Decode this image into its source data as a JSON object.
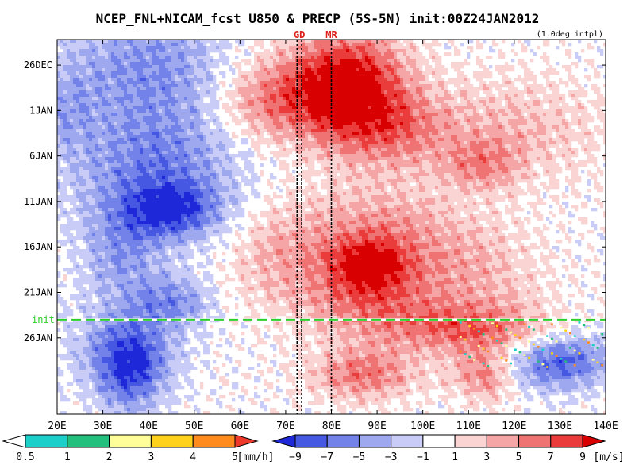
{
  "chart_data": {
    "type": "heatmap",
    "title": "NCEP_FNL+NICAM_fcst U850 & PRECP (5S-5N) init:00Z24JAN2012",
    "subtitle": "(1.0deg intpl)",
    "xlabel": "",
    "ylabel": "",
    "x_ticks": [
      "20E",
      "30E",
      "40E",
      "50E",
      "60E",
      "70E",
      "80E",
      "90E",
      "100E",
      "110E",
      "120E",
      "130E",
      "140E"
    ],
    "xlim": [
      20,
      140
    ],
    "y_ticks": [
      "26DEC",
      "1JAN",
      "6JAN",
      "11JAN",
      "16JAN",
      "21JAN",
      "26JAN"
    ],
    "init_label": "init",
    "marker_lines": [
      {
        "label": "GD",
        "lon_left": 72.5,
        "lon_right": 73.5
      },
      {
        "label": "MR",
        "lon_left": 80,
        "lon_right": 80
      }
    ],
    "precip_colorbar": {
      "labels": [
        "0.5",
        "1",
        "2",
        "3",
        "4",
        "5"
      ],
      "unit": "[mm/h]",
      "colors": [
        "#ffffff",
        "#1ccfc8",
        "#22c07c",
        "#fffe99",
        "#ffd11b",
        "#ff8a1e",
        "#ef3a2b"
      ]
    },
    "u850_colorbar": {
      "labels": [
        "−9",
        "−7",
        "−5",
        "−3",
        "−1",
        "1",
        "3",
        "5",
        "7",
        "9"
      ],
      "unit": "[m/s]",
      "colors": [
        "#1f28d8",
        "#4657e2",
        "#7382e8",
        "#9ea8ef",
        "#c8ccf6",
        "#ffffff",
        "#fad3d3",
        "#f5a5a5",
        "#f07373",
        "#eb3c3c",
        "#d80000"
      ]
    },
    "u850_field": {
      "description_units": "m/s",
      "centers": [
        {
          "lon": 83,
          "day": 3,
          "value": 11,
          "sx": 9,
          "sy": 4
        },
        {
          "lon": 66,
          "day": 5,
          "value": 5,
          "sx": 8,
          "sy": 3
        },
        {
          "lon": 92,
          "day": 8,
          "value": 5,
          "sx": 10,
          "sy": 3
        },
        {
          "lon": 120,
          "day": 8,
          "value": 3,
          "sx": 14,
          "sy": 4
        },
        {
          "lon": 113,
          "day": 12,
          "value": 4,
          "sx": 6,
          "sy": 2
        },
        {
          "lon": 90,
          "day": 20,
          "value": 5,
          "sx": 12,
          "sy": 4
        },
        {
          "lon": 88,
          "day": 23,
          "value": 6,
          "sx": 6,
          "sy": 2
        },
        {
          "lon": 68,
          "day": 22,
          "value": 3,
          "sx": 8,
          "sy": 4
        },
        {
          "lon": 112,
          "day": 24,
          "value": 3,
          "sx": 10,
          "sy": 4
        },
        {
          "lon": 88,
          "day": 27,
          "value": 5,
          "sx": 10,
          "sy": 3
        },
        {
          "lon": 110,
          "day": 30,
          "value": 6,
          "sx": 12,
          "sy": 2
        },
        {
          "lon": 87,
          "day": 35,
          "value": 6,
          "sx": 8,
          "sy": 2
        },
        {
          "lon": 114,
          "day": 35,
          "value": 6,
          "sx": 5,
          "sy": 2
        },
        {
          "lon": 40,
          "day": 1,
          "value": -5,
          "sx": 12,
          "sy": 5
        },
        {
          "lon": 42,
          "day": 13,
          "value": -6,
          "sx": 12,
          "sy": 5
        },
        {
          "lon": 45,
          "day": 17,
          "value": -7,
          "sx": 7,
          "sy": 2
        },
        {
          "lon": 34,
          "day": 22,
          "value": -4,
          "sx": 6,
          "sy": 4
        },
        {
          "lon": 45,
          "day": 27,
          "value": -5,
          "sx": 6,
          "sy": 2
        },
        {
          "lon": 35,
          "day": 32,
          "value": -5,
          "sx": 8,
          "sy": 3
        },
        {
          "lon": 36,
          "day": 35,
          "value": -7,
          "sx": 5,
          "sy": 3
        },
        {
          "lon": 127,
          "day": 34,
          "value": -6,
          "sx": 8,
          "sy": 2
        },
        {
          "lon": 134,
          "day": 33,
          "value": -3,
          "sx": 6,
          "sy": 2
        },
        {
          "lon": 22,
          "day": 6,
          "value": -3,
          "sx": 5,
          "sy": 4
        }
      ]
    }
  }
}
